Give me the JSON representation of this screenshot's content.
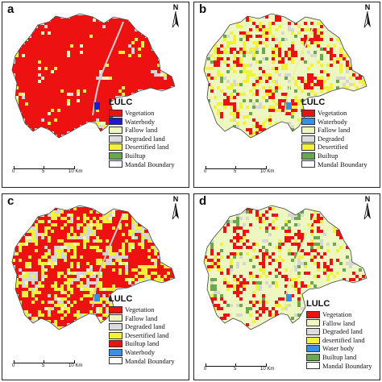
{
  "panels": [
    {
      "label": "a",
      "base_fill": "#e2e2e2",
      "legend_title": "LULC",
      "legend": [
        {
          "label": "Vegetation",
          "color": "#ee1111"
        },
        {
          "label": "Waterbody",
          "color": "#1c1ccc"
        },
        {
          "label": "Fallow land",
          "color": "#eef7c0"
        },
        {
          "label": "Degraded land",
          "color": "#dcdcdc"
        },
        {
          "label": "Desertified land",
          "color": "#f2f23a"
        },
        {
          "label": "Builtup",
          "color": "#6aa84f"
        },
        {
          "label": "Mandal Boundary",
          "color": "#ffffff"
        }
      ],
      "scale": {
        "start": "0",
        "mid": "5",
        "end": "10 Km"
      },
      "north": "N"
    },
    {
      "label": "b",
      "base_fill": "#eef7c0",
      "legend_title": "LULC",
      "legend": [
        {
          "label": "Vegetation",
          "color": "#ee1111"
        },
        {
          "label": "Waterbody",
          "color": "#3a8ee6"
        },
        {
          "label": "Fallow land",
          "color": "#eef7c0"
        },
        {
          "label": "Degraded",
          "color": "#dcdcdc"
        },
        {
          "label": "Desertified",
          "color": "#f2f23a"
        },
        {
          "label": "Builtup",
          "color": "#6aa84f"
        },
        {
          "label": "Mandal Boundary",
          "color": "#ffffff"
        }
      ],
      "scale": {
        "start": "0",
        "mid": "5",
        "end": "10 Km"
      },
      "north": "N"
    },
    {
      "label": "c",
      "base_fill": "#e2e2e2",
      "legend_title": "LULC",
      "legend": [
        {
          "label": "Vegetation",
          "color": "#ee1111"
        },
        {
          "label": "Fallow land",
          "color": "#eef7c0"
        },
        {
          "label": "Degraded land",
          "color": "#dcdcdc"
        },
        {
          "label": "Desertified land",
          "color": "#f2f23a"
        },
        {
          "label": "Builtup land",
          "color": "#ee1111"
        },
        {
          "label": "Waterbody",
          "color": "#3a8ee6"
        },
        {
          "label": "Mandal Boundary",
          "color": "#ffffff"
        }
      ],
      "scale": {
        "start": "0",
        "mid": "5",
        "end": "10 Km"
      },
      "north": "N"
    },
    {
      "label": "d",
      "base_fill": "#eef7c0",
      "legend_title": "LULC",
      "legend": [
        {
          "label": "Vegetation",
          "color": "#ee1111"
        },
        {
          "label": "Fallow land",
          "color": "#eef7c0"
        },
        {
          "label": "Degraded land",
          "color": "#dcdcdc"
        },
        {
          "label": "desertified land",
          "color": "#f2f23a"
        },
        {
          "label": "Water body",
          "color": "#3a8ee6"
        },
        {
          "label": "Builtup land",
          "color": "#6aa84f"
        },
        {
          "label": "Mandal Boundary",
          "color": "#ffffff"
        }
      ],
      "scale": {
        "start": "0",
        "mid": "5",
        "end": "10 Km"
      },
      "north": "N"
    }
  ],
  "patch_styles": [
    {
      "red_density": 0.8,
      "yellow_density": 0.05,
      "light_density": 0.05,
      "green_density": 0.0,
      "gray_density": 0.1
    },
    {
      "red_density": 0.28,
      "yellow_density": 0.12,
      "light_density": 0.4,
      "green_density": 0.06,
      "gray_density": 0.14
    },
    {
      "red_density": 0.55,
      "yellow_density": 0.18,
      "light_density": 0.04,
      "green_density": 0.0,
      "gray_density": 0.23
    },
    {
      "red_density": 0.3,
      "yellow_density": 0.06,
      "light_density": 0.42,
      "green_density": 0.08,
      "gray_density": 0.14
    }
  ]
}
